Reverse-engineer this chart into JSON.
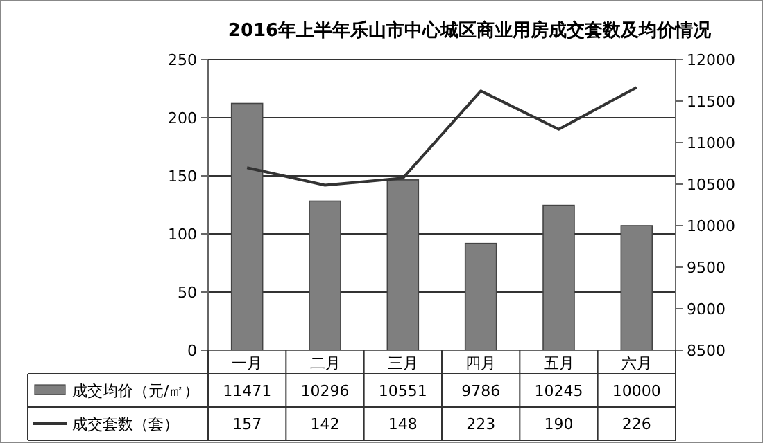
{
  "chart_data": {
    "type": "bar",
    "title": "2016年上半年乐山市中心城区商业用房成交套数及均价情况",
    "categories": [
      "一月",
      "二月",
      "三月",
      "四月",
      "五月",
      "六月"
    ],
    "series": [
      {
        "name": "成交均价（元/㎡）",
        "axis": "y2",
        "color": "#7f7f7f",
        "values": [
          11471,
          10296,
          10551,
          9786,
          10245,
          10000
        ]
      },
      {
        "name": "成交套数（套）",
        "type": "line",
        "axis": "y",
        "color": "#333333",
        "values": [
          157,
          142,
          148,
          223,
          190,
          226
        ]
      }
    ],
    "ylim": [
      0,
      250
    ],
    "yticks": [
      0,
      50,
      100,
      150,
      200,
      250
    ],
    "y2lim": [
      8500,
      12000
    ],
    "y2ticks": [
      8500,
      9000,
      9500,
      10000,
      10500,
      11000,
      11500,
      12000
    ],
    "grid": "y",
    "legend": "bottom",
    "data_labels": true,
    "marker": "none",
    "line_style": "solid"
  }
}
